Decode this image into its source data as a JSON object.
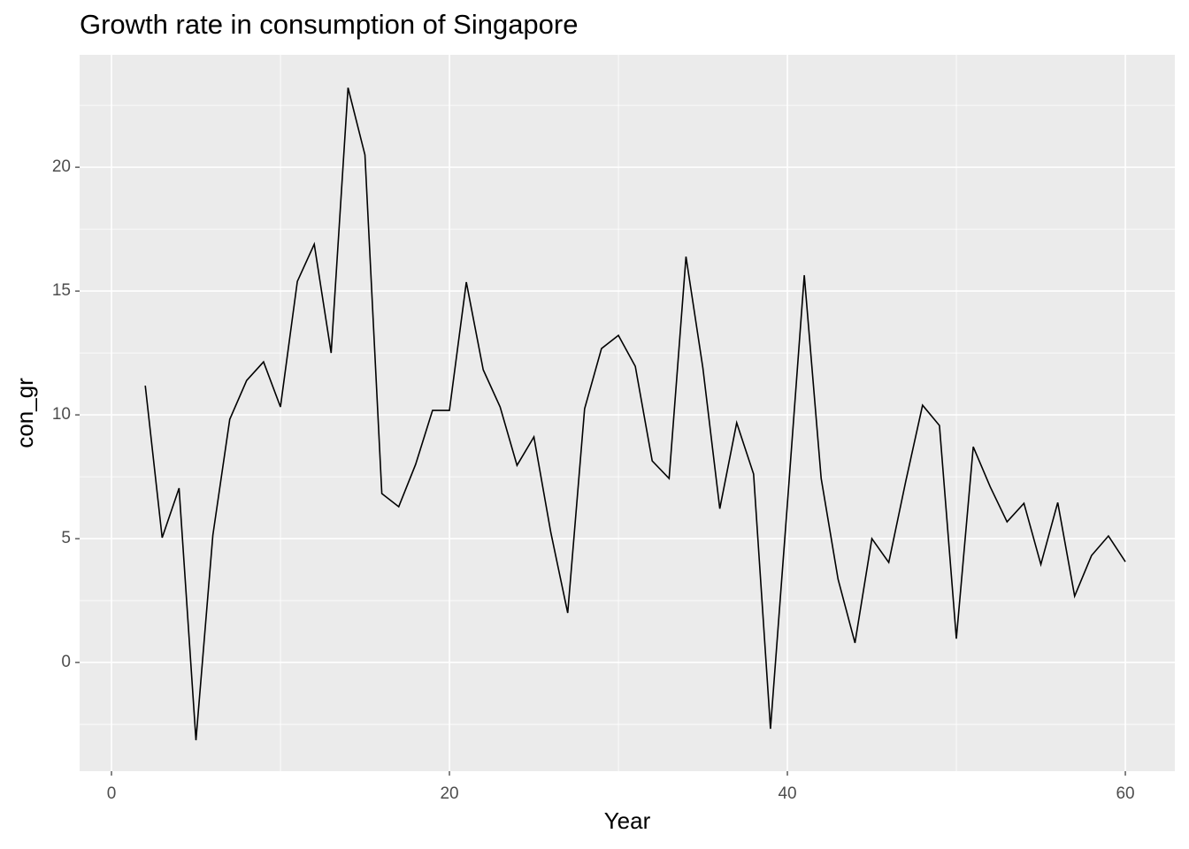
{
  "chart_data": {
    "type": "line",
    "title": "Growth rate in consumption of Singapore",
    "x_label": "Year",
    "y_label": "con_gr",
    "x": [
      2,
      3,
      4,
      5,
      6,
      7,
      8,
      9,
      10,
      11,
      12,
      13,
      14,
      15,
      16,
      17,
      18,
      19,
      20,
      21,
      22,
      23,
      24,
      25,
      26,
      27,
      28,
      29,
      30,
      31,
      32,
      33,
      34,
      35,
      36,
      37,
      38,
      39,
      40,
      41,
      42,
      43,
      44,
      45,
      46,
      47,
      48,
      49,
      50,
      51,
      52,
      53,
      54,
      55,
      56,
      57,
      58,
      59,
      60
    ],
    "series": [
      {
        "name": "con_gr",
        "color": "#000000",
        "values": [
          11.18,
          5.04,
          7.04,
          -3.14,
          5.14,
          9.82,
          11.39,
          12.14,
          10.32,
          15.39,
          16.89,
          12.5,
          23.21,
          20.5,
          6.82,
          6.29,
          8.0,
          10.18,
          10.18,
          15.36,
          11.82,
          10.32,
          7.96,
          9.11,
          5.25,
          2.0,
          10.25,
          12.68,
          13.21,
          11.96,
          8.14,
          7.43,
          16.39,
          11.89,
          6.21,
          9.68,
          7.61,
          -2.68,
          6.4,
          15.64,
          7.43,
          3.36,
          0.79,
          5.0,
          4.04,
          7.3,
          10.39,
          9.57,
          0.96,
          8.71,
          7.1,
          5.68,
          6.43,
          3.96,
          6.46,
          2.68,
          4.32,
          5.11,
          4.07
        ]
      }
    ],
    "xlim": [
      -1.885,
      62.93
    ],
    "xticks": [
      0,
      20,
      40,
      60
    ],
    "ylim": [
      -4.39,
      24.54
    ],
    "yticks": [
      0,
      5,
      10,
      15,
      20
    ],
    "grid": true
  }
}
